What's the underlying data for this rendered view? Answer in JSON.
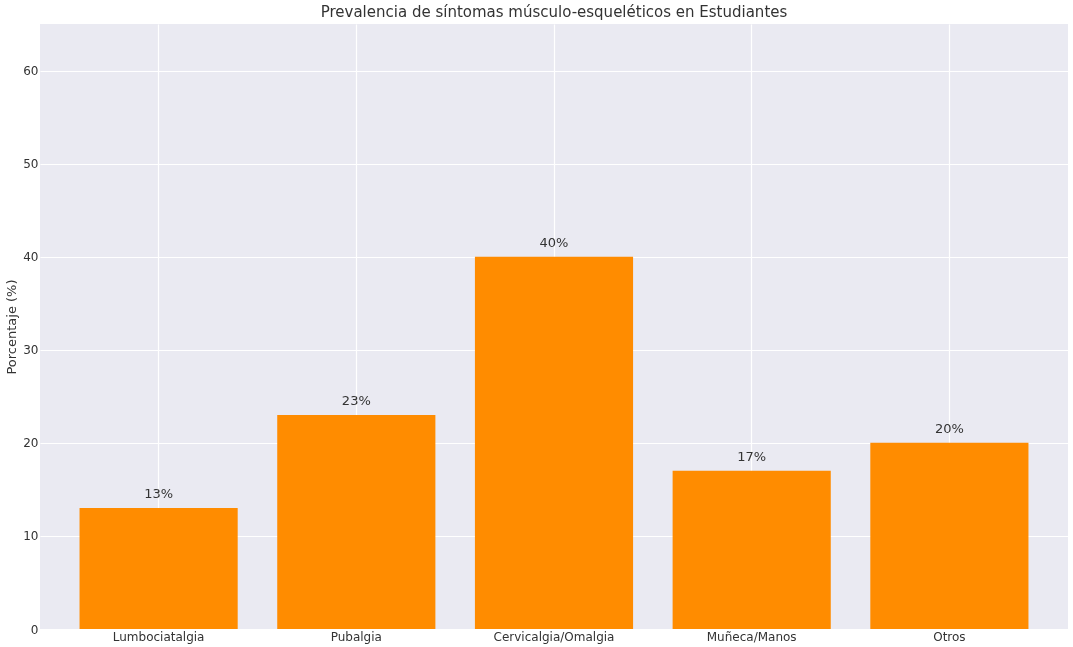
{
  "chart_data": {
    "type": "bar",
    "title": "Prevalencia de síntomas músculo-esqueléticos en Estudiantes",
    "ylabel": "Porcentaje (%)",
    "categories": [
      "Lumbociatalgia",
      "Pubalgia",
      "Cervicalgia/Omalgia",
      "Muñeca/Manos",
      "Otros"
    ],
    "values": [
      13,
      23,
      40,
      17,
      20
    ],
    "color": "#ff8c00",
    "value_labels": [
      "13%",
      "23%",
      "40%",
      "17%",
      "20%"
    ],
    "ylim": [
      0,
      65
    ],
    "yticks": [
      0,
      10,
      20,
      30,
      40,
      50,
      60
    ],
    "grid": true
  }
}
